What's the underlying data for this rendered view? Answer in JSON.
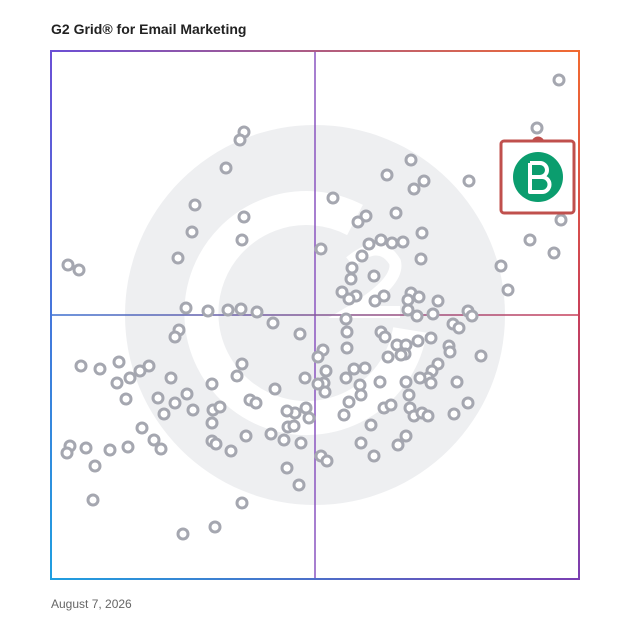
{
  "chart_data": {
    "type": "scatter",
    "title": "G2 Grid® for Email Marketing",
    "footnote": "August 7, 2026",
    "xlim": [
      0,
      528
    ],
    "ylim": [
      0,
      528
    ],
    "series": [
      {
        "color": "#a5a7b0",
        "x": [
          508,
          486,
          510,
          479,
          503,
          450,
          457,
          418,
          193,
          189,
          175,
          144,
          193,
          141,
          191,
          127,
          17,
          28,
          360,
          336,
          373,
          363,
          282,
          345,
          315,
          307,
          371,
          330,
          341,
          318,
          352,
          270,
          311,
          370,
          301,
          323,
          300,
          291,
          305,
          298,
          333,
          324,
          360,
          357,
          368,
          387,
          357,
          366,
          382,
          417,
          421,
          402,
          408,
          135,
          157,
          177,
          190,
          206,
          222,
          128,
          124,
          249,
          295,
          296,
          330,
          334,
          346,
          355,
          367,
          380,
          398,
          399,
          354,
          350,
          337,
          296,
          272,
          267,
          430,
          387,
          381,
          377,
          369,
          380,
          355,
          358,
          329,
          314,
          303,
          309,
          310,
          295,
          275,
          273,
          267,
          254,
          224,
          274,
          298,
          333,
          340,
          359,
          363,
          371,
          377,
          403,
          417,
          406,
          320,
          355,
          347,
          310,
          323,
          293,
          255,
          258,
          244,
          236,
          237,
          243,
          233,
          220,
          250,
          270,
          276,
          236,
          248,
          191,
          186,
          199,
          205,
          161,
          136,
          142,
          162,
          169,
          124,
          107,
          113,
          120,
          98,
          89,
          79,
          66,
          68,
          49,
          30,
          75,
          161,
          161,
          165,
          180,
          195,
          91,
          103,
          110,
          77,
          59,
          35,
          19,
          16,
          44,
          42,
          191,
          164,
          132
        ],
        "y": [
          499,
          451,
          359,
          339,
          326,
          313,
          289,
          398,
          447,
          439,
          411,
          374,
          362,
          347,
          339,
          321,
          314,
          309,
          419,
          404,
          398,
          390,
          381,
          366,
          363,
          357,
          346,
          339,
          336,
          335,
          337,
          330,
          323,
          320,
          311,
          303,
          300,
          287,
          283,
          280,
          283,
          278,
          286,
          279,
          282,
          278,
          269,
          263,
          265,
          268,
          263,
          255,
          251,
          271,
          268,
          269,
          270,
          267,
          256,
          249,
          242,
          245,
          260,
          247,
          247,
          242,
          234,
          234,
          238,
          241,
          233,
          227,
          225,
          224,
          222,
          231,
          229,
          222,
          223,
          215,
          208,
          201,
          201,
          196,
          197,
          184,
          197,
          211,
          210,
          194,
          184,
          201,
          208,
          196,
          195,
          201,
          190,
          187,
          177,
          171,
          174,
          171,
          163,
          166,
          163,
          165,
          176,
          197,
          154,
          143,
          134,
          136,
          123,
          164,
          171,
          161,
          166,
          168,
          152,
          153,
          139,
          145,
          136,
          123,
          118,
          111,
          94,
          215,
          203,
          179,
          176,
          195,
          185,
          169,
          169,
          172,
          176,
          181,
          165,
          201,
          213,
          208,
          201,
          196,
          217,
          210,
          213,
          180,
          156,
          138,
          135,
          128,
          143,
          151,
          139,
          130,
          132,
          129,
          131,
          133,
          126,
          113,
          79,
          76,
          52,
          45
        ]
      },
      {
        "color": "#c0504d",
        "x": [
          487
        ],
        "y": [
          436
        ]
      }
    ]
  }
}
